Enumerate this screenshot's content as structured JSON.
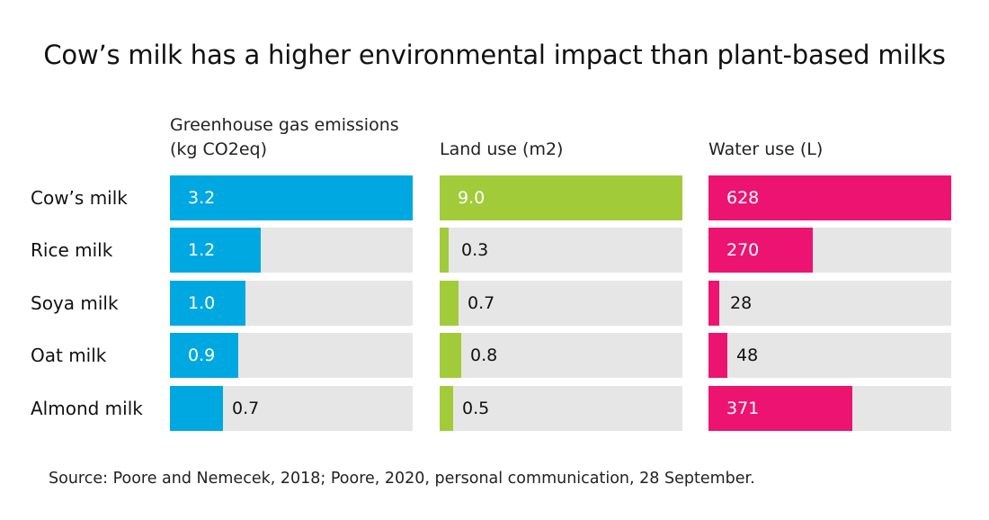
{
  "chart_data": {
    "type": "bar",
    "orientation": "horizontal",
    "title": "Cow’s milk has a higher environmental impact than plant-based milks",
    "categories": [
      "Cow’s milk",
      "Rice milk",
      "Soya milk",
      "Oat milk",
      "Almond milk"
    ],
    "panels": [
      {
        "name": "Greenhouse gas emissions (kg CO2eq)",
        "header_lines": [
          "Greenhouse gas emissions",
          "(kg CO2eq)"
        ],
        "color": "#00a8e1",
        "max": 3.2,
        "values": [
          3.2,
          1.2,
          1.0,
          0.9,
          0.7
        ],
        "labels": [
          "3.2",
          "1.2",
          "1.0",
          "0.9",
          "0.7"
        ]
      },
      {
        "name": "Land use (m2)",
        "header_lines": [
          "Land use (m2)"
        ],
        "color": "#a2cb3a",
        "max": 9.0,
        "values": [
          9.0,
          0.3,
          0.7,
          0.8,
          0.5
        ],
        "labels": [
          "9.0",
          "0.3",
          "0.7",
          "0.8",
          "0.5"
        ]
      },
      {
        "name": "Water use (L)",
        "header_lines": [
          "Water use (L)"
        ],
        "color": "#ec1470",
        "max": 628,
        "values": [
          628,
          270,
          28,
          48,
          371
        ],
        "labels": [
          "628",
          "270",
          "28",
          "48",
          "371"
        ]
      }
    ],
    "source": "Source: Poore and Nemecek, 2018; Poore, 2020, personal communication, 28 September."
  }
}
